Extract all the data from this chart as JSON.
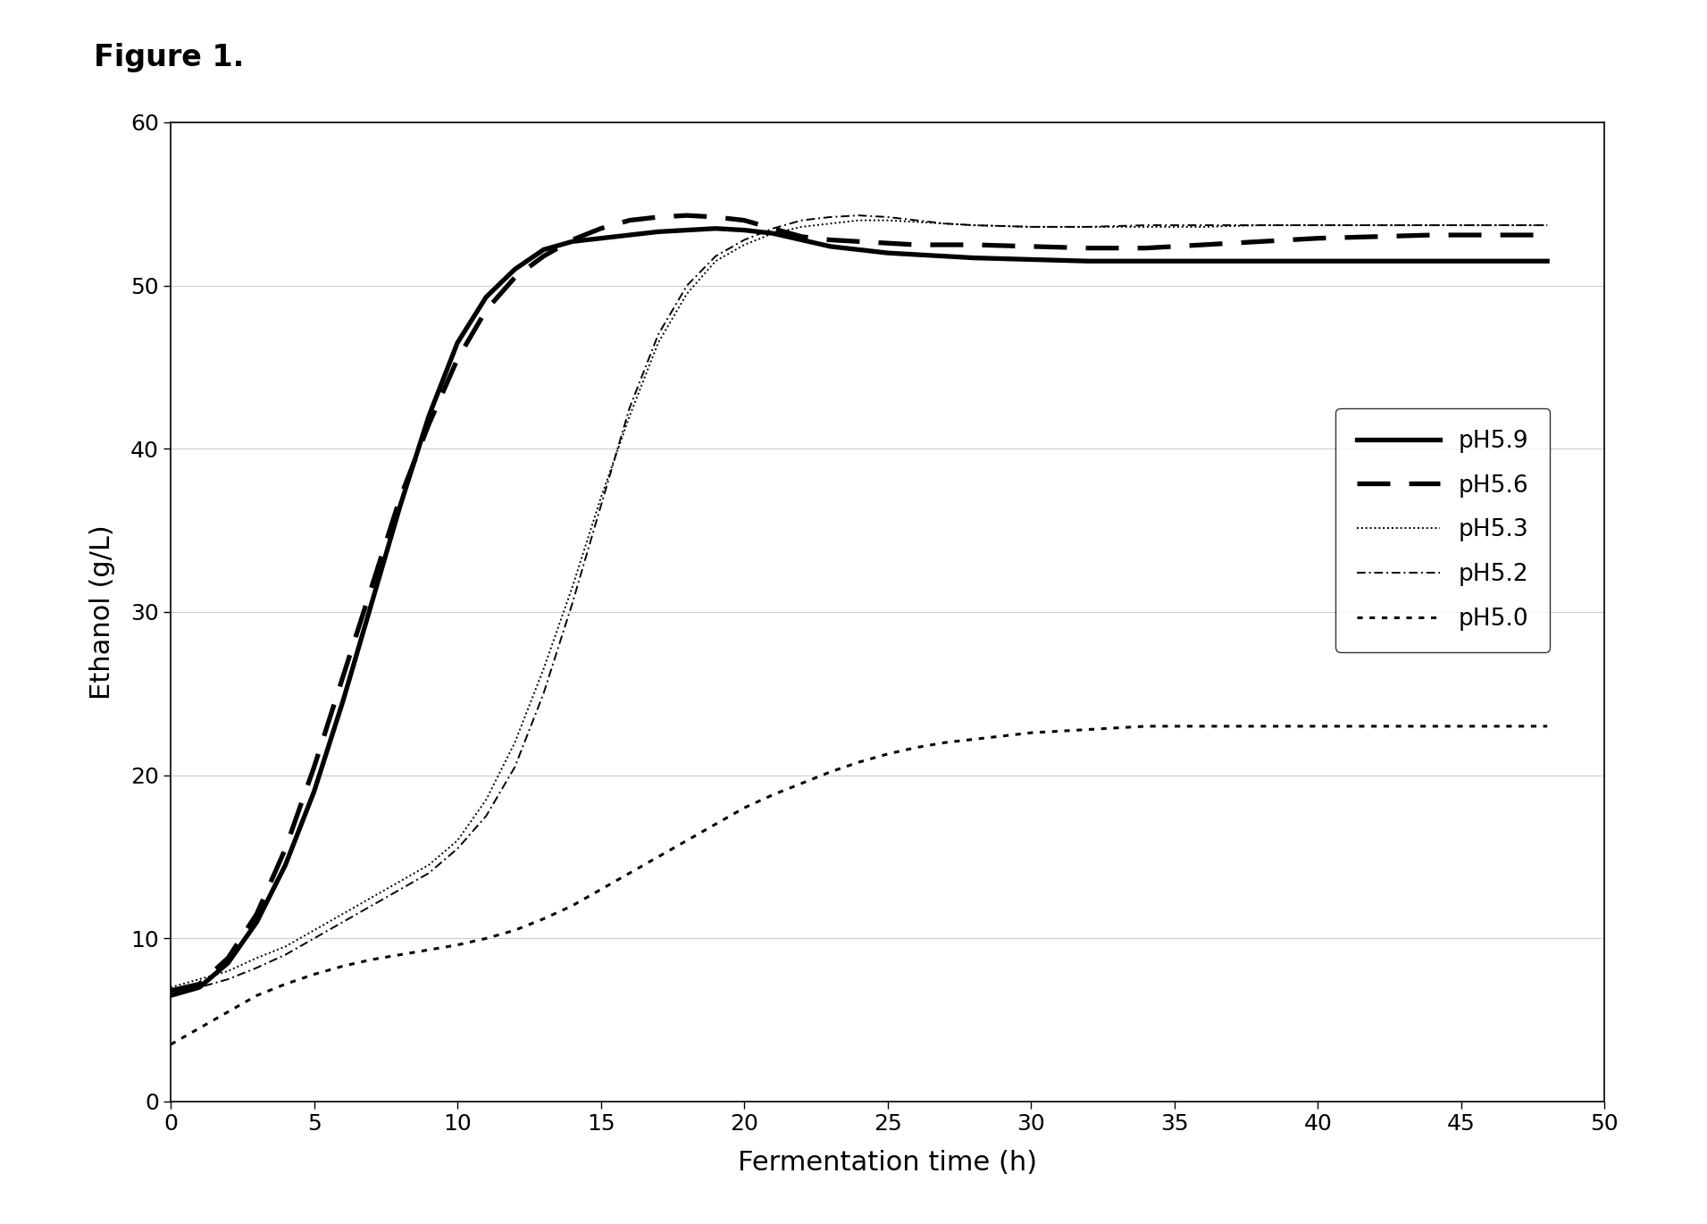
{
  "figure_title": "Figure 1.",
  "xlabel": "Fermentation time (h)",
  "ylabel": "Ethanol (g/L)",
  "xlim": [
    0,
    50
  ],
  "ylim": [
    0,
    60
  ],
  "xticks": [
    0,
    5,
    10,
    15,
    20,
    25,
    30,
    35,
    40,
    45,
    50
  ],
  "yticks": [
    0,
    10,
    20,
    30,
    40,
    50,
    60
  ],
  "background_color": "#ffffff",
  "ph59_x": [
    0,
    1,
    2,
    3,
    4,
    5,
    6,
    7,
    8,
    9,
    10,
    11,
    12,
    13,
    14,
    15,
    16,
    17,
    18,
    19,
    20,
    21,
    22,
    23,
    24,
    25,
    26,
    27,
    28,
    30,
    32,
    34,
    36,
    38,
    40,
    42,
    44,
    46,
    48
  ],
  "ph59_y": [
    6.5,
    7.0,
    8.5,
    11.0,
    14.5,
    19.0,
    24.5,
    30.5,
    36.5,
    42.0,
    46.5,
    49.3,
    51.0,
    52.2,
    52.7,
    52.9,
    53.1,
    53.3,
    53.4,
    53.5,
    53.4,
    53.2,
    52.8,
    52.4,
    52.2,
    52.0,
    51.9,
    51.8,
    51.7,
    51.6,
    51.5,
    51.5,
    51.5,
    51.5,
    51.5,
    51.5,
    51.5,
    51.5,
    51.5
  ],
  "ph56_x": [
    0,
    1,
    2,
    3,
    4,
    5,
    6,
    7,
    8,
    9,
    10,
    11,
    12,
    13,
    14,
    15,
    16,
    17,
    18,
    19,
    20,
    21,
    22,
    23,
    24,
    25,
    26,
    27,
    28,
    30,
    32,
    34,
    36,
    38,
    40,
    42,
    44,
    46,
    48
  ],
  "ph56_y": [
    6.8,
    7.2,
    8.8,
    11.5,
    15.5,
    20.5,
    26.0,
    31.5,
    37.0,
    41.5,
    45.5,
    48.5,
    50.5,
    51.8,
    52.8,
    53.5,
    54.0,
    54.2,
    54.3,
    54.2,
    54.0,
    53.5,
    53.0,
    52.8,
    52.7,
    52.6,
    52.5,
    52.5,
    52.5,
    52.4,
    52.3,
    52.3,
    52.5,
    52.7,
    52.9,
    53.0,
    53.1,
    53.1,
    53.1
  ],
  "ph53_x": [
    0,
    1,
    2,
    3,
    4,
    5,
    6,
    7,
    8,
    9,
    10,
    11,
    12,
    13,
    14,
    15,
    16,
    17,
    18,
    19,
    20,
    21,
    22,
    23,
    24,
    25,
    26,
    27,
    28,
    30,
    32,
    34,
    36,
    38,
    40,
    42,
    44,
    46,
    48
  ],
  "ph53_y": [
    7.0,
    7.5,
    8.0,
    8.8,
    9.5,
    10.5,
    11.5,
    12.5,
    13.5,
    14.5,
    16.0,
    18.5,
    22.0,
    26.5,
    31.5,
    37.0,
    42.0,
    46.5,
    49.5,
    51.5,
    52.5,
    53.2,
    53.6,
    53.8,
    54.0,
    54.0,
    53.9,
    53.8,
    53.7,
    53.6,
    53.6,
    53.6,
    53.6,
    53.7,
    53.7,
    53.7,
    53.7,
    53.7,
    53.7
  ],
  "ph52_x": [
    0,
    1,
    2,
    3,
    4,
    5,
    6,
    7,
    8,
    9,
    10,
    11,
    12,
    13,
    14,
    15,
    16,
    17,
    18,
    19,
    20,
    21,
    22,
    23,
    24,
    25,
    26,
    27,
    28,
    30,
    32,
    34,
    36,
    38,
    40,
    42,
    44,
    46,
    48
  ],
  "ph52_y": [
    6.5,
    7.0,
    7.5,
    8.2,
    9.0,
    10.0,
    11.0,
    12.0,
    13.0,
    14.0,
    15.5,
    17.5,
    20.5,
    25.0,
    30.5,
    36.5,
    42.5,
    47.0,
    50.0,
    51.8,
    52.8,
    53.5,
    54.0,
    54.2,
    54.3,
    54.2,
    54.0,
    53.8,
    53.7,
    53.6,
    53.6,
    53.7,
    53.7,
    53.7,
    53.7,
    53.7,
    53.7,
    53.7,
    53.7
  ],
  "ph50_x": [
    0,
    1,
    2,
    3,
    4,
    5,
    6,
    7,
    8,
    9,
    10,
    11,
    12,
    13,
    14,
    15,
    16,
    17,
    18,
    19,
    20,
    21,
    22,
    23,
    24,
    25,
    26,
    27,
    28,
    30,
    32,
    34,
    36,
    38,
    40,
    42,
    44,
    46,
    48
  ],
  "ph50_y": [
    3.5,
    4.5,
    5.5,
    6.5,
    7.2,
    7.8,
    8.3,
    8.7,
    9.0,
    9.3,
    9.6,
    10.0,
    10.5,
    11.2,
    12.0,
    13.0,
    14.0,
    15.0,
    16.0,
    17.0,
    18.0,
    18.8,
    19.5,
    20.2,
    20.8,
    21.3,
    21.7,
    22.0,
    22.2,
    22.6,
    22.8,
    23.0,
    23.0,
    23.0,
    23.0,
    23.0,
    23.0,
    23.0,
    23.0
  ]
}
